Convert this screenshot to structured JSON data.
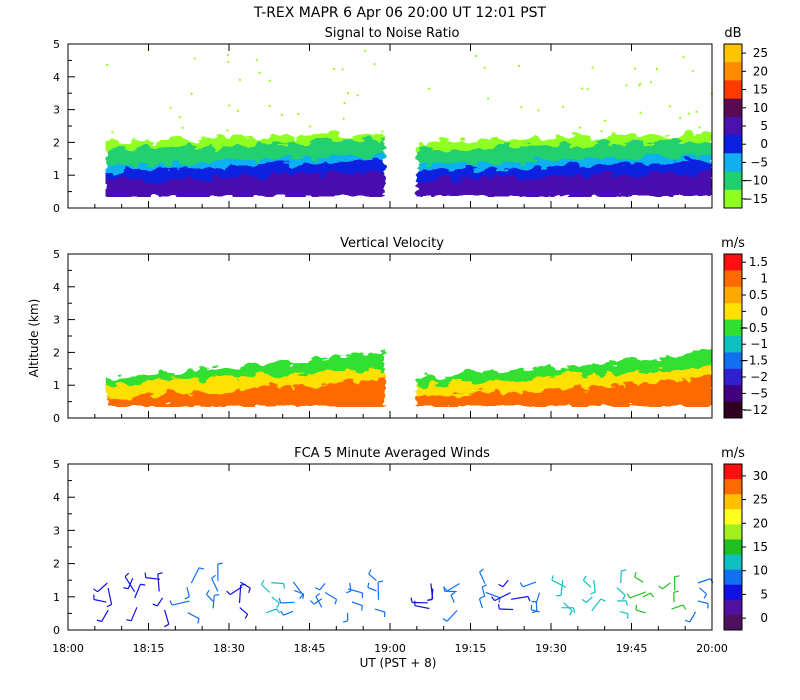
{
  "header": {
    "title": "T-REX  MAPR  6 Apr 06  20:00 UT  12:01  PST"
  },
  "axes": {
    "y_label": "Altitude (km)",
    "x_label": "UT  (PST + 8)",
    "x_ticks": [
      "18:00",
      "18:15",
      "18:30",
      "18:45",
      "19:00",
      "19:15",
      "19:30",
      "19:45",
      "20:00"
    ],
    "x_range_minutes": [
      0,
      120
    ],
    "y_range_km": [
      0,
      5
    ]
  },
  "chart_data": [
    {
      "type": "heatmap",
      "title": "Signal to Noise Ratio",
      "ylabel": "Altitude (km)",
      "xlabel": "UT  (PST + 8)",
      "ylim": [
        0,
        5
      ],
      "yticks": [
        "0",
        "1",
        "2",
        "3",
        "4",
        "5"
      ],
      "colorbar": {
        "unit": "dB",
        "labels": [
          "25",
          "20",
          "15",
          "10",
          "5",
          "0",
          "−5",
          "−10",
          "−15"
        ],
        "colors": [
          "#ffc400",
          "#ff8a00",
          "#ff3a00",
          "#5a0a52",
          "#4a10b0",
          "#0a20e0",
          "#10b0f0",
          "#20d070",
          "#90ff20"
        ]
      },
      "segments": [
        {
          "start_min": 7,
          "end_min": 59
        },
        {
          "start_min": 65,
          "end_min": 120
        }
      ],
      "layers": [
        {
          "top_km_start": 2.0,
          "top_km_end": 2.3,
          "color": "#90ff20",
          "label": "-15"
        },
        {
          "top_km_start": 1.75,
          "top_km_end": 2.1,
          "color": "#20d070",
          "label": "-10"
        },
        {
          "top_km_start": 1.3,
          "top_km_end": 1.6,
          "color": "#10b0f0",
          "label": "-5"
        },
        {
          "top_km_start": 1.1,
          "top_km_end": 1.45,
          "color": "#0a20e0",
          "label": "0"
        },
        {
          "top_km_start": 0.85,
          "top_km_end": 1.1,
          "color": "#4a10b0",
          "label": "5"
        }
      ]
    },
    {
      "type": "heatmap",
      "title": "Vertical Velocity",
      "ylabel": "Altitude (km)",
      "xlabel": "UT  (PST + 8)",
      "ylim": [
        0,
        5
      ],
      "yticks": [
        "0",
        "1",
        "2",
        "3",
        "4",
        "5"
      ],
      "colorbar": {
        "unit": "m/s",
        "labels": [
          "1.5",
          "1",
          "0.5",
          "0",
          "−0.5",
          "−1",
          "−1.5",
          "−2",
          "−5",
          "−12"
        ],
        "colors": [
          "#ff1010",
          "#ff6a00",
          "#ffa800",
          "#ffe000",
          "#30e030",
          "#10c0c0",
          "#1070f0",
          "#3020d0",
          "#400080",
          "#300020"
        ]
      },
      "segments": [
        {
          "start_min": 7,
          "end_min": 59
        },
        {
          "start_min": 65,
          "end_min": 120
        }
      ],
      "layers": [
        {
          "top_km_start": 1.2,
          "top_km_end": 2.0,
          "color": "#30e030",
          "label": "-0.5"
        },
        {
          "top_km_start": 1.0,
          "top_km_end": 1.5,
          "color": "#ffe000",
          "label": "0"
        },
        {
          "top_km_start": 0.6,
          "top_km_end": 1.2,
          "color": "#ff6a00",
          "label": "1"
        }
      ]
    },
    {
      "type": "scatter",
      "title": "FCA 5 Minute Averaged Winds",
      "ylabel": "Altitude (km)",
      "xlabel": "UT  (PST + 8)",
      "ylim": [
        0,
        5
      ],
      "yticks": [
        "0",
        "1",
        "2",
        "3",
        "4",
        "5"
      ],
      "colorbar": {
        "unit": "m/s",
        "labels": [
          "30",
          "25",
          "20",
          "15",
          "10",
          "5",
          "0"
        ],
        "colors": [
          "#ff1010",
          "#ff6a00",
          "#ffc000",
          "#ffff20",
          "#a0f020",
          "#20c020",
          "#10c0c0",
          "#1070f0",
          "#1010e0",
          "#5010a0",
          "#501060"
        ]
      },
      "wind_times_min": [
        7.5,
        12.5,
        17.5,
        22.5,
        27.5,
        32.5,
        37.5,
        42.5,
        47.5,
        52.5,
        57.5,
        67.5,
        72.5,
        77.5,
        82.5,
        87.5,
        92.5,
        97.5,
        102.5,
        107.5,
        112.5,
        117.5
      ],
      "wind_heights_km": [
        0.6,
        0.9,
        1.2,
        1.5
      ],
      "wind_speed_ms": [
        4,
        3,
        4,
        5,
        5,
        4,
        9,
        6,
        5,
        5,
        6,
        4,
        7,
        5,
        4,
        6,
        9,
        10,
        9,
        12,
        11,
        6
      ]
    }
  ]
}
